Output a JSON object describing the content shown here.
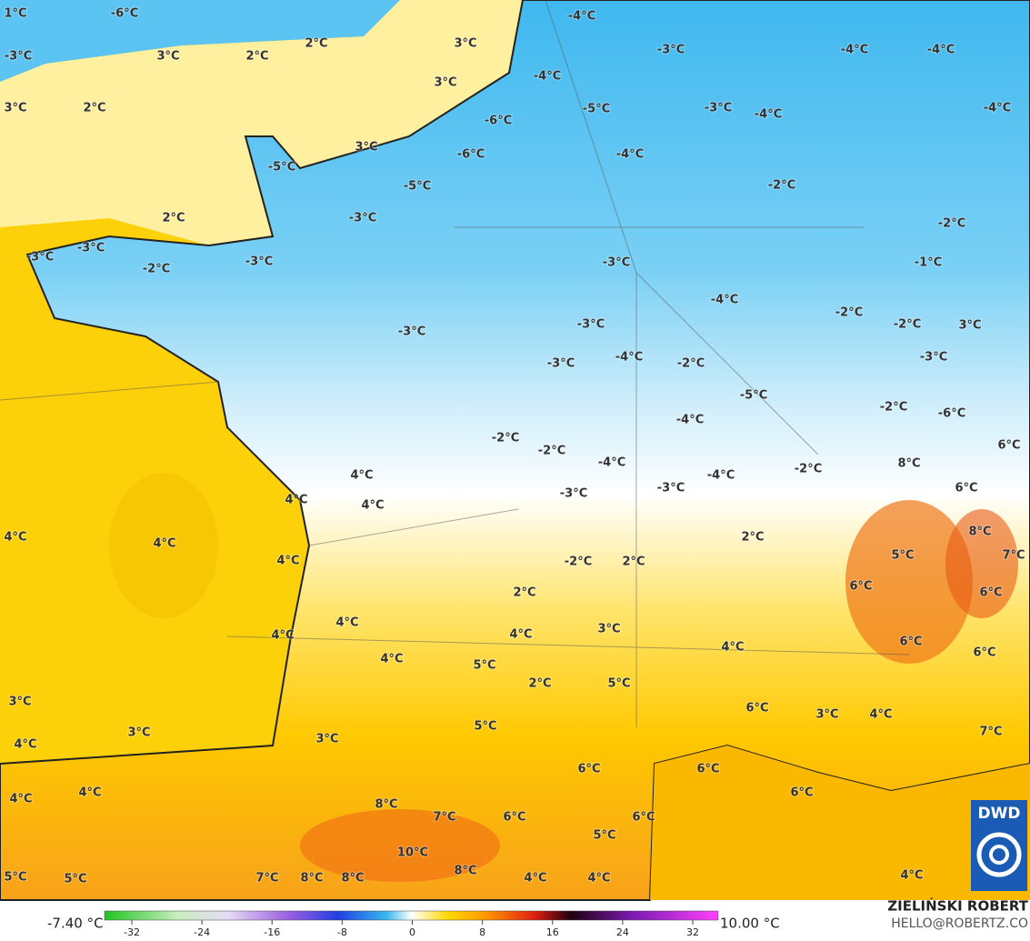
{
  "map": {
    "labels": [
      "1°C",
      "-6°C",
      "-4°C",
      "-3°C",
      "3°C",
      "2°C",
      "2°C",
      "3°C",
      "3°C",
      "-3°C",
      "-4°C",
      "-4°C",
      "3°C",
      "2°C",
      "-4°C",
      "-6°C",
      "-5°C",
      "-3°C",
      "-4°C",
      "-4°C",
      "3°C",
      "-6°C",
      "-4°C",
      "-5°C",
      "-5°C",
      "-2°C",
      "2°C",
      "-3°C",
      "-2°C",
      "-3°C",
      "-3°C",
      "-3°C",
      "-2°C",
      "-3°C",
      "-1°C",
      "-4°C",
      "-2°C",
      "-2°C",
      "3°C",
      "-3°C",
      "-3°C",
      "-3°C",
      "-4°C",
      "-2°C",
      "-3°C",
      "-5°C",
      "-2°C",
      "-4°C",
      "-6°C",
      "-2°C",
      "-2°C",
      "6°C",
      "-4°C",
      "-2°C",
      "8°C",
      "4°C",
      "-4°C",
      "-3°C",
      "-3°C",
      "6°C",
      "4°C",
      "4°C",
      "4°C",
      "4°C",
      "8°C",
      "2°C",
      "5°C",
      "7°C",
      "4°C",
      "-2°C",
      "2°C",
      "6°C",
      "6°C",
      "2°C",
      "4°C",
      "4°C",
      "4°C",
      "3°C",
      "6°C",
      "4°C",
      "6°C",
      "4°C",
      "5°C",
      "2°C",
      "5°C",
      "3°C",
      "6°C",
      "3°C",
      "4°C",
      "3°C",
      "5°C",
      "7°C",
      "3°C",
      "4°C",
      "6°C",
      "6°C",
      "6°C",
      "4°C",
      "4°C",
      "8°C",
      "7°C",
      "6°C",
      "6°C",
      "5°C",
      "10°C",
      "5°C",
      "5°C",
      "7°C",
      "8°C",
      "8°C",
      "8°C",
      "4°C",
      "4°C",
      "4°C"
    ],
    "colorbar": {
      "min_label": "-7.40 °C",
      "max_label": "10.00 °C",
      "ticks": [
        -32,
        -24,
        -16,
        -8,
        0,
        8,
        16,
        24,
        32
      ]
    },
    "logo": "DWD",
    "author": "ZIELIŃSKI ROBERT",
    "contact": "HELLO@ROBERTZ.CO"
  }
}
